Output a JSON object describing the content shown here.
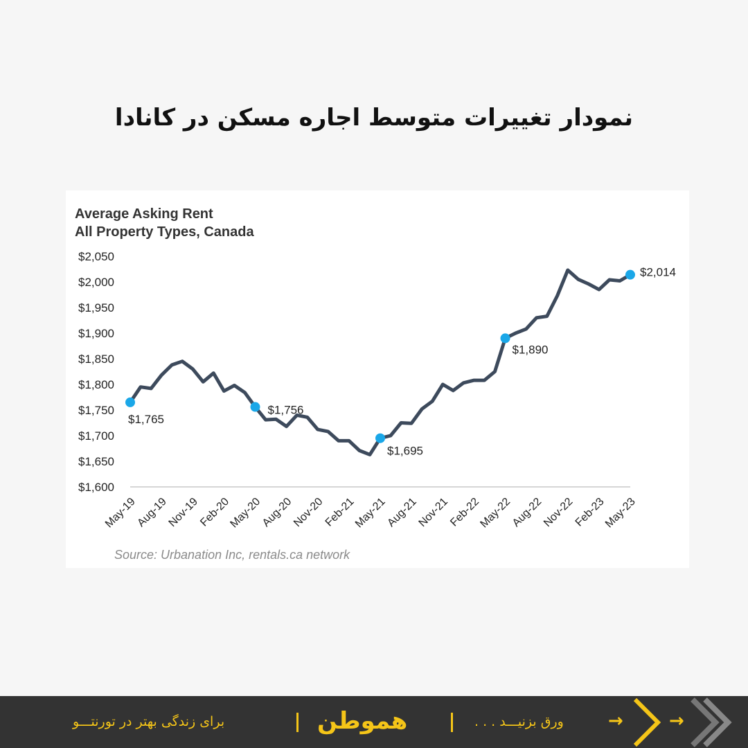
{
  "page_title": "نمودار تغییرات متوسط اجاره مسکن در کانادا",
  "footer": {
    "tagline": "برای زندگی بهتر در تورنتـــو",
    "logo_text": "هموطن",
    "cta": "ورق بزنیـــد . . .",
    "accent_color": "#f5c518",
    "background_color": "#333333"
  },
  "chart_data": {
    "type": "line",
    "title_lines": [
      "Average Asking Rent",
      "All Property Types, Canada"
    ],
    "source": "Source: Urbanation Inc, rentals.ca network",
    "ylim": [
      1600,
      2050
    ],
    "y_ticks": [
      1600,
      1650,
      1700,
      1750,
      1800,
      1850,
      1900,
      1950,
      2000,
      2050
    ],
    "y_tick_labels": [
      "$1,600",
      "$1,650",
      "$1,700",
      "$1,750",
      "$1,800",
      "$1,850",
      "$1,900",
      "$1,950",
      "$2,000",
      "$2,050"
    ],
    "x_tick_labels": [
      "May-19",
      "Aug-19",
      "Nov-19",
      "Feb-20",
      "May-20",
      "Aug-20",
      "Nov-20",
      "Feb-21",
      "May-21",
      "Aug-21",
      "Nov-21",
      "Feb-22",
      "May-22",
      "Aug-22",
      "Nov-22",
      "Feb-23",
      "May-23"
    ],
    "line_color": "#3d4a5c",
    "marker_color": "#1aa7e8",
    "series": [
      {
        "values": [
          1765,
          1795,
          1792,
          1818,
          1838,
          1845,
          1830,
          1805,
          1822,
          1787,
          1798,
          1784,
          1756,
          1731,
          1732,
          1718,
          1740,
          1736,
          1712,
          1708,
          1690,
          1690,
          1671,
          1663,
          1695,
          1700,
          1725,
          1724,
          1752,
          1767,
          1800,
          1788,
          1803,
          1808,
          1808,
          1825,
          1890,
          1900,
          1908,
          1930,
          1933,
          1973,
          2023,
          2005,
          1996,
          1985,
          2004,
          2002,
          2014
        ]
      }
    ],
    "highlighted_points": [
      {
        "index": 0,
        "label": "$1,765"
      },
      {
        "index": 12,
        "label": "$1,756"
      },
      {
        "index": 24,
        "label": "$1,695"
      },
      {
        "index": 36,
        "label": "$1,890"
      },
      {
        "index": 48,
        "label": "$2,014"
      }
    ]
  }
}
